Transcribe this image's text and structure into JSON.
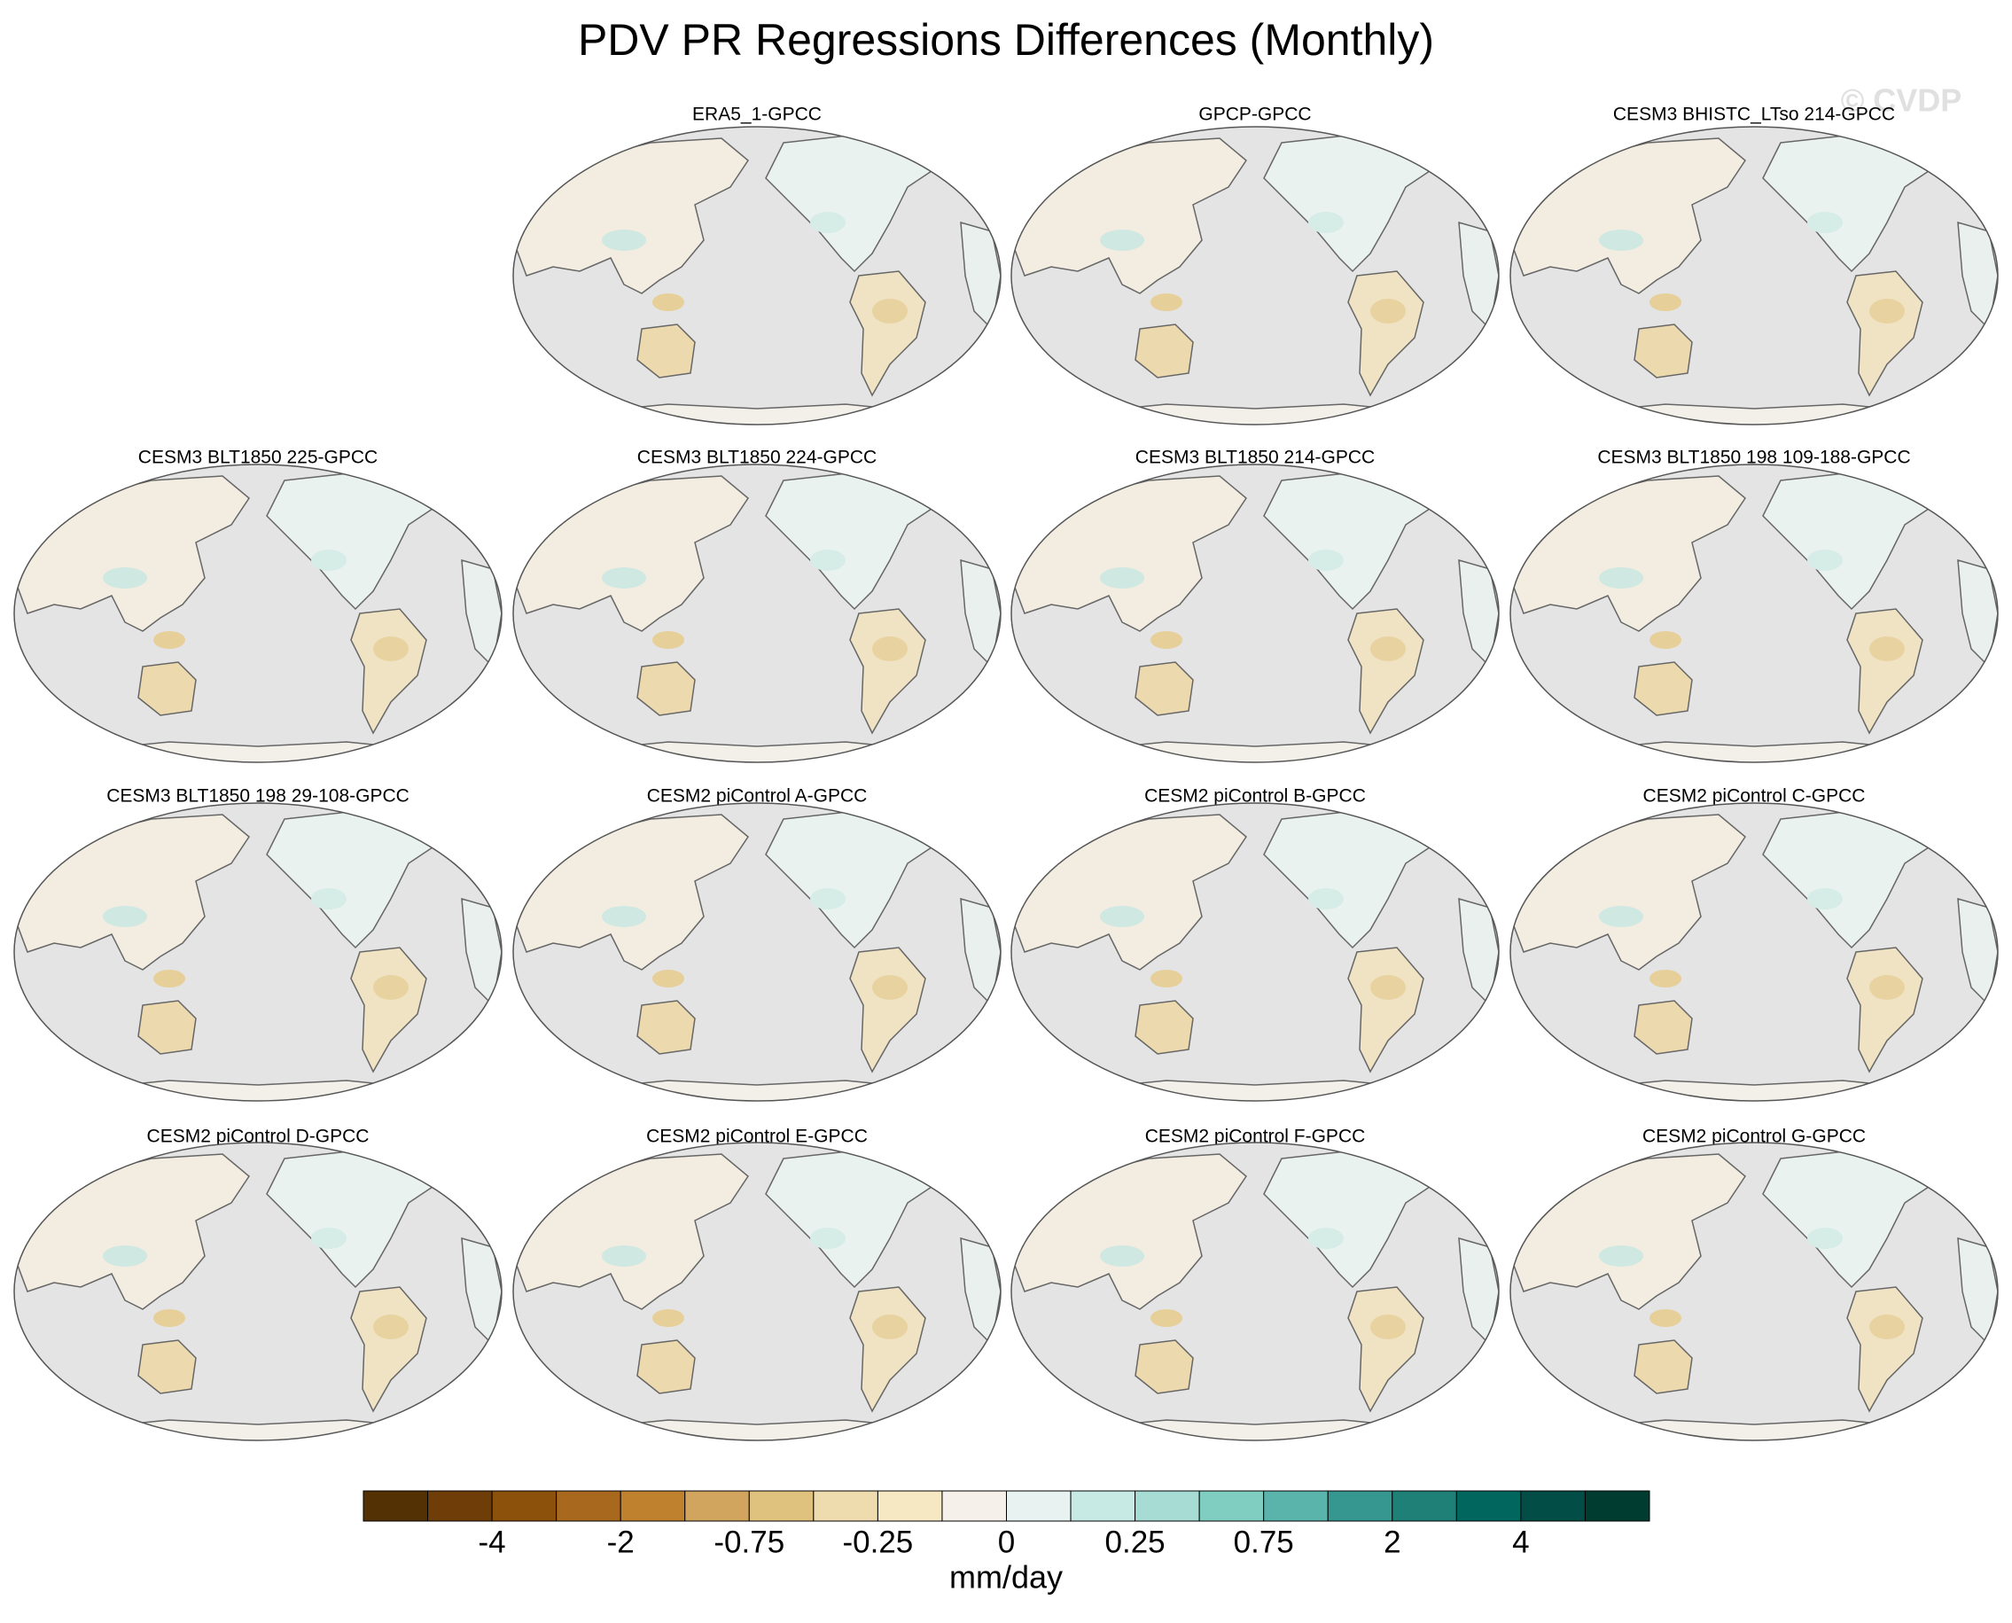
{
  "title": "PDV PR Regressions Differences (Monthly)",
  "watermark": "© CVDP",
  "panels": [
    {
      "title": "ERA5_1-GPCC"
    },
    {
      "title": "GPCP-GPCC"
    },
    {
      "title": "CESM3 BHISTC_LTso 214-GPCC"
    },
    {
      "title": "CESM3 BLT1850 225-GPCC"
    },
    {
      "title": "CESM3 BLT1850 224-GPCC"
    },
    {
      "title": "CESM3 BLT1850 214-GPCC"
    },
    {
      "title": "CESM3 BLT1850 198 109-188-GPCC"
    },
    {
      "title": "CESM3 BLT1850 198 29-108-GPCC"
    },
    {
      "title": "CESM2 piControl A-GPCC"
    },
    {
      "title": "CESM2 piControl B-GPCC"
    },
    {
      "title": "CESM2 piControl C-GPCC"
    },
    {
      "title": "CESM2 piControl D-GPCC"
    },
    {
      "title": "CESM2 piControl E-GPCC"
    },
    {
      "title": "CESM2 piControl F-GPCC"
    },
    {
      "title": "CESM2 piControl G-GPCC"
    }
  ],
  "colorbar": {
    "colors": [
      "#543005",
      "#6f3d08",
      "#8c510a",
      "#a8691e",
      "#bf812d",
      "#d2a55e",
      "#dfc27d",
      "#eedcae",
      "#f6e8c3",
      "#f5f1ea",
      "#e8f2f0",
      "#c7eae5",
      "#a6dcd4",
      "#80cdc1",
      "#5ab4ac",
      "#35978f",
      "#1f8077",
      "#01665e",
      "#024d45",
      "#003c30"
    ],
    "labels": [
      "-4",
      "-2",
      "-0.75",
      "-0.25",
      "0",
      "0.25",
      "0.75",
      "2",
      "4"
    ],
    "units": "mm/day"
  }
}
